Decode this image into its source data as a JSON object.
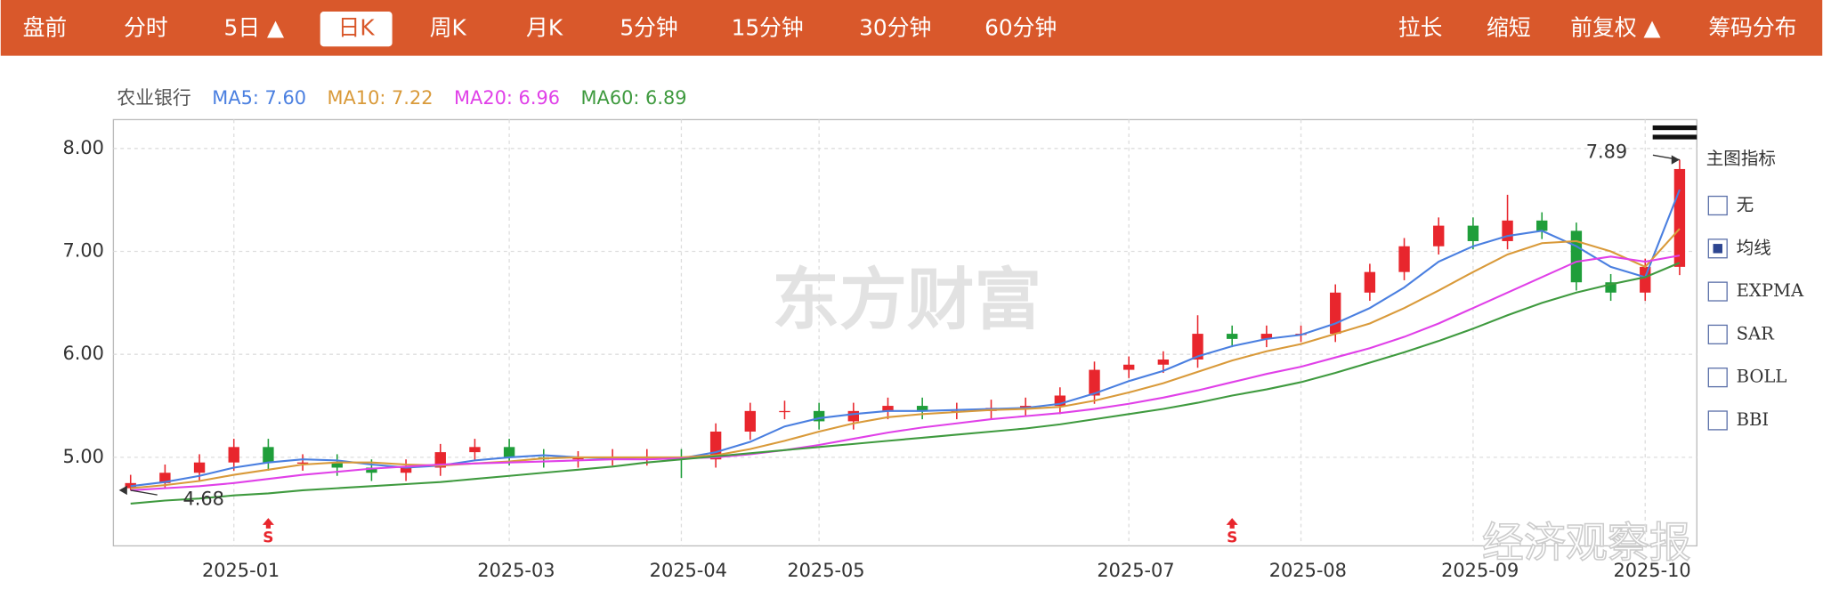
{
  "toolbar": {
    "left": [
      "盘前",
      "分时",
      "5日 ▲",
      "日K",
      "周K",
      "月K",
      "5分钟",
      "15分钟",
      "30分钟",
      "60分钟"
    ],
    "right": [
      "拉长",
      "缩短",
      "前复权 ▲",
      "筹码分布"
    ],
    "active": 3
  },
  "chart_data": {
    "type": "candlestick",
    "title": "农业银行",
    "open": [
      4.7,
      4.75,
      4.85,
      4.95,
      5.1,
      4.95,
      4.95,
      4.9,
      4.85,
      4.9,
      5.05,
      5.1,
      5.0,
      4.98,
      5.0,
      5.0,
      5.0,
      4.98,
      5.25,
      5.45,
      5.45,
      5.35,
      5.45,
      5.5,
      5.45,
      5.45,
      5.48,
      5.5,
      5.6,
      5.85,
      5.9,
      5.95,
      6.2,
      6.15,
      6.2,
      6.2,
      6.6,
      6.8,
      7.05,
      7.25,
      7.1,
      7.3,
      7.2,
      6.7,
      6.6,
      6.85
    ],
    "high": [
      4.83,
      4.93,
      5.03,
      5.18,
      5.18,
      5.03,
      5.03,
      4.98,
      4.98,
      5.13,
      5.18,
      5.18,
      5.08,
      5.06,
      5.08,
      5.08,
      5.08,
      5.33,
      5.53,
      5.55,
      5.53,
      5.53,
      5.58,
      5.58,
      5.53,
      5.56,
      5.58,
      5.68,
      5.93,
      5.98,
      6.03,
      6.38,
      6.28,
      6.28,
      6.28,
      6.68,
      6.88,
      7.13,
      7.33,
      7.33,
      7.55,
      7.38,
      7.28,
      6.78,
      6.93,
      7.89
    ],
    "low": [
      4.68,
      4.7,
      4.77,
      4.87,
      4.87,
      4.87,
      4.82,
      4.77,
      4.77,
      4.82,
      4.97,
      4.92,
      4.9,
      4.9,
      4.92,
      4.92,
      4.8,
      4.9,
      5.17,
      5.37,
      5.27,
      5.27,
      5.37,
      5.37,
      5.37,
      5.37,
      5.4,
      5.42,
      5.52,
      5.77,
      5.82,
      5.87,
      6.07,
      6.07,
      6.12,
      6.12,
      6.52,
      6.72,
      6.97,
      7.02,
      7.02,
      7.12,
      6.62,
      6.52,
      6.52,
      6.77
    ],
    "close": [
      4.75,
      4.85,
      4.95,
      5.1,
      4.95,
      4.95,
      4.9,
      4.85,
      4.9,
      5.05,
      5.1,
      5.0,
      4.98,
      5.0,
      5.0,
      5.0,
      4.98,
      5.25,
      5.45,
      5.45,
      5.35,
      5.45,
      5.5,
      5.45,
      5.45,
      5.48,
      5.5,
      5.6,
      5.85,
      5.9,
      5.95,
      6.2,
      6.15,
      6.2,
      6.2,
      6.6,
      6.8,
      7.05,
      7.25,
      7.1,
      7.3,
      7.2,
      6.7,
      6.6,
      6.85,
      7.8
    ],
    "up_color": "#e8262d",
    "down_color": "#1f9e3a",
    "title_color": "#555",
    "series": [
      {
        "name": "MA5: 7.60",
        "color": "#4a7fe0",
        "values": [
          4.72,
          4.76,
          4.82,
          4.9,
          4.95,
          4.98,
          4.97,
          4.93,
          4.9,
          4.92,
          4.97,
          5.0,
          5.02,
          5.0,
          4.99,
          5.0,
          4.99,
          5.05,
          5.15,
          5.3,
          5.38,
          5.42,
          5.45,
          5.45,
          5.46,
          5.47,
          5.48,
          5.52,
          5.62,
          5.74,
          5.84,
          5.98,
          6.08,
          6.15,
          6.19,
          6.3,
          6.45,
          6.65,
          6.9,
          7.05,
          7.15,
          7.2,
          7.05,
          6.85,
          6.75,
          7.6
        ]
      },
      {
        "name": "MA10: 7.22",
        "color": "#d99a3a",
        "values": [
          4.7,
          4.73,
          4.77,
          4.83,
          4.88,
          4.93,
          4.95,
          4.95,
          4.93,
          4.92,
          4.94,
          4.96,
          4.99,
          5.0,
          5.0,
          5.0,
          5.0,
          5.02,
          5.08,
          5.16,
          5.25,
          5.33,
          5.39,
          5.42,
          5.44,
          5.46,
          5.47,
          5.49,
          5.55,
          5.63,
          5.72,
          5.83,
          5.94,
          6.03,
          6.1,
          6.2,
          6.3,
          6.45,
          6.62,
          6.8,
          6.97,
          7.08,
          7.1,
          7.0,
          6.85,
          7.22
        ]
      },
      {
        "name": "MA20: 6.96",
        "color": "#e040e8",
        "values": [
          4.68,
          4.7,
          4.72,
          4.75,
          4.79,
          4.83,
          4.86,
          4.89,
          4.91,
          4.93,
          4.94,
          4.95,
          4.96,
          4.97,
          4.98,
          4.98,
          4.99,
          5.0,
          5.03,
          5.07,
          5.12,
          5.18,
          5.24,
          5.29,
          5.33,
          5.37,
          5.4,
          5.43,
          5.47,
          5.52,
          5.58,
          5.65,
          5.73,
          5.81,
          5.88,
          5.97,
          6.06,
          6.17,
          6.3,
          6.45,
          6.6,
          6.75,
          6.9,
          6.95,
          6.9,
          6.96
        ]
      },
      {
        "name": "MA60: 6.89",
        "color": "#3f9a3f",
        "values": [
          4.55,
          4.58,
          4.6,
          4.63,
          4.65,
          4.68,
          4.7,
          4.72,
          4.74,
          4.76,
          4.79,
          4.82,
          4.85,
          4.88,
          4.91,
          4.95,
          4.98,
          5.01,
          5.04,
          5.07,
          5.1,
          5.13,
          5.16,
          5.19,
          5.22,
          5.25,
          5.28,
          5.32,
          5.37,
          5.42,
          5.47,
          5.53,
          5.6,
          5.66,
          5.73,
          5.82,
          5.92,
          6.02,
          6.13,
          6.25,
          6.38,
          6.5,
          6.6,
          6.68,
          6.75,
          6.89
        ]
      }
    ],
    "xlim": [
      -0.5,
      45.5
    ],
    "xticks": [
      {
        "value": 3,
        "label": "2025-01"
      },
      {
        "value": 11,
        "label": "2025-03"
      },
      {
        "value": 16,
        "label": "2025-04"
      },
      {
        "value": 20,
        "label": "2025-05"
      },
      {
        "value": 29,
        "label": "2025-07"
      },
      {
        "value": 34,
        "label": "2025-08"
      },
      {
        "value": 39,
        "label": "2025-09"
      },
      {
        "value": 44,
        "label": "2025-10"
      }
    ],
    "ylim": [
      4.14,
      8.28
    ],
    "yticks": [
      {
        "value": 5,
        "label": "5.00"
      },
      {
        "value": 6,
        "label": "6.00"
      },
      {
        "value": 7,
        "label": "7.00"
      },
      {
        "value": 8,
        "label": "8.00"
      }
    ],
    "grid": true,
    "annotations": [
      {
        "text": "7.89",
        "value": 7.89,
        "index": 45
      },
      {
        "text": "4.68",
        "value": 4.68,
        "index": 0
      }
    ],
    "signals": [
      {
        "index": 4,
        "label": "S"
      },
      {
        "index": 32,
        "label": "S"
      }
    ]
  },
  "indicator_panel": {
    "title": "主图指标",
    "options": [
      "无",
      "均线",
      "EXPMA",
      "SAR",
      "BOLL",
      "BBI"
    ],
    "checked": 1
  },
  "watermarks": [
    "东方财富",
    "经济观察报"
  ]
}
